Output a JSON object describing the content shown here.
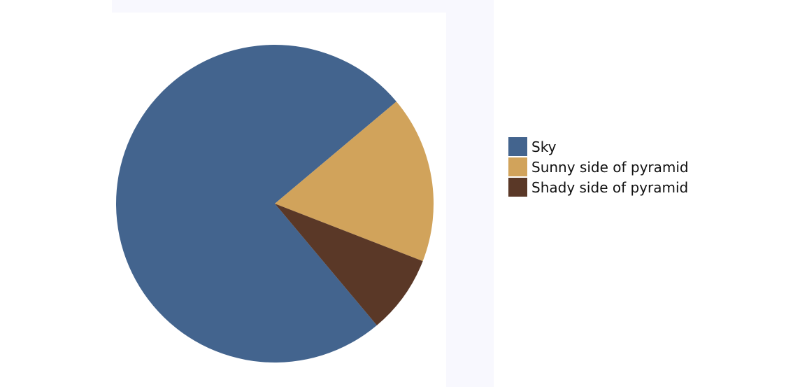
{
  "chart_data": {
    "type": "pie",
    "title": "",
    "start_angle_deg": 0,
    "direction": "clockwise",
    "series": [
      {
        "name": "Sky",
        "value": 0.75,
        "color": "#43648e"
      },
      {
        "name": "Sunny side of pyramid",
        "value": 0.17,
        "color": "#d1a35b"
      },
      {
        "name": "Shady side of pyramid",
        "value": 0.08,
        "color": "#5a3827"
      }
    ],
    "legend_position": "right"
  },
  "legend": {
    "items": [
      {
        "label": "Sky",
        "color": "#43648e"
      },
      {
        "label": "Sunny side of pyramid",
        "color": "#d1a35b"
      },
      {
        "label": "Shady side of pyramid",
        "color": "#5a3827"
      }
    ]
  }
}
